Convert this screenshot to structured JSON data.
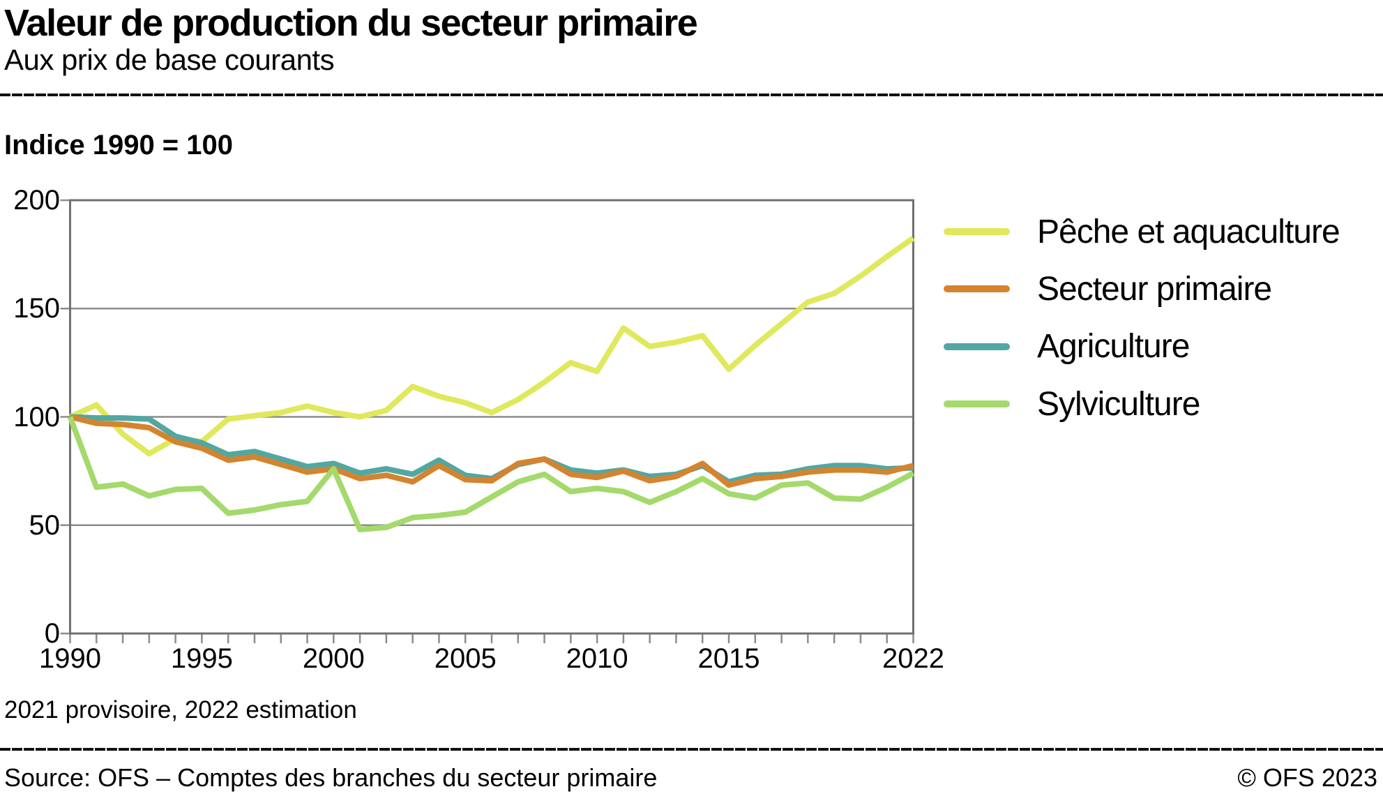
{
  "header": {
    "title": "Valeur de production du secteur primaire",
    "subtitle": "Aux prix de base courants"
  },
  "chart": {
    "index_label": "Indice 1990 = 100",
    "footnote": "2021 provisoire, 2022 estimation"
  },
  "footer": {
    "source": "Source: OFS – Comptes des branches du secteur primaire",
    "copyright": "© OFS 2023"
  },
  "colors": {
    "grid": "#8c8c8c",
    "frame": "#707070",
    "rule": "#111111",
    "text": "#000000",
    "background": "#ffffff"
  },
  "chart_data": {
    "type": "line",
    "title": "Valeur de production du secteur primaire",
    "subtitle": "Aux prix de base courants",
    "unit_note": "Indice 1990 = 100",
    "xlim": [
      1990,
      2022
    ],
    "ylim": [
      0,
      200
    ],
    "grid": "horizontal",
    "legend_position": "right",
    "y_ticks": [
      0,
      50,
      100,
      150,
      200
    ],
    "x_tick_labels": [
      1990,
      1995,
      2000,
      2005,
      2010,
      2015,
      2022
    ],
    "x": [
      1990,
      1991,
      1992,
      1993,
      1994,
      1995,
      1996,
      1997,
      1998,
      1999,
      2000,
      2001,
      2002,
      2003,
      2004,
      2005,
      2006,
      2007,
      2008,
      2009,
      2010,
      2011,
      2012,
      2013,
      2014,
      2015,
      2016,
      2017,
      2018,
      2019,
      2020,
      2021,
      2022
    ],
    "draw_order": [
      0,
      2,
      1,
      3
    ],
    "series": [
      {
        "name": "Pêche et aquaculture",
        "color": "#e0e85c",
        "values": [
          100,
          105.5,
          92,
          83,
          90,
          88.5,
          99,
          100.5,
          102,
          105,
          102,
          100,
          103,
          114,
          109.5,
          106.5,
          102,
          108,
          116,
          125,
          121,
          141,
          132.5,
          134.5,
          137.5,
          122,
          133,
          143,
          153,
          157,
          165,
          174,
          182.5
        ]
      },
      {
        "name": "Secteur primaire",
        "color": "#d4842e",
        "values": [
          100,
          97,
          96.5,
          95,
          88.5,
          85.5,
          80,
          81.5,
          78,
          74.5,
          76,
          71.5,
          73,
          70,
          77.5,
          71,
          70.5,
          78.5,
          80.5,
          73.5,
          72,
          75,
          70.5,
          72.5,
          78.5,
          68.5,
          71.5,
          72.5,
          74.5,
          75.5,
          75.5,
          74.5,
          77.5
        ]
      },
      {
        "name": "Agriculture",
        "color": "#52a7a2",
        "values": [
          100,
          99.5,
          99.5,
          99,
          91,
          88,
          82.5,
          84,
          80.5,
          77,
          78.5,
          74,
          76,
          73.5,
          80,
          73,
          71.5,
          78,
          80.5,
          75.5,
          74,
          75.5,
          72.5,
          73.5,
          77.5,
          70,
          73,
          73.5,
          76,
          77.5,
          77.5,
          76,
          76.5
        ]
      },
      {
        "name": "Sylviculture",
        "color": "#a4d96c",
        "values": [
          100,
          67.5,
          69,
          63.5,
          66.5,
          67,
          55.5,
          57,
          59.5,
          61,
          76,
          48,
          49,
          53.5,
          54.5,
          56,
          63,
          70,
          73.5,
          65.5,
          67,
          65.5,
          60.5,
          65.5,
          71.5,
          64.5,
          62.5,
          68.5,
          69.5,
          62.5,
          62,
          67.5,
          74
        ]
      }
    ]
  }
}
